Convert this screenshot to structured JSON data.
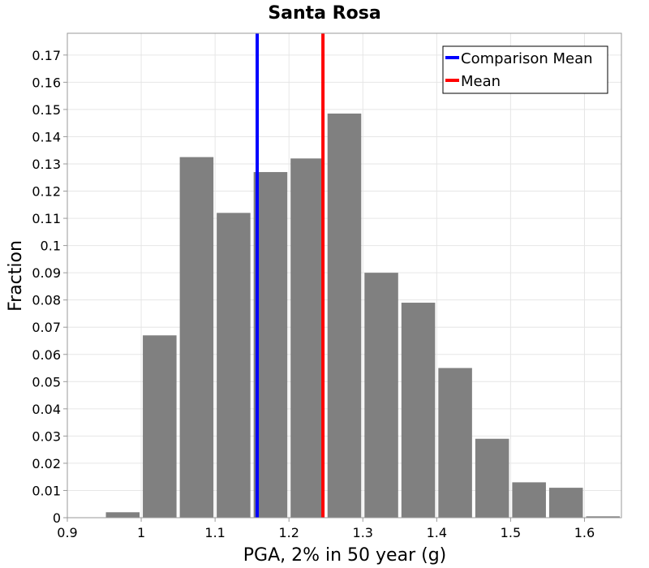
{
  "chart_data": {
    "type": "bar",
    "title": "Santa Rosa",
    "xlabel": "PGA, 2% in 50 year (g)",
    "ylabel": "Fraction",
    "xlim": [
      0.9,
      1.65
    ],
    "ylim": [
      0,
      0.178
    ],
    "grid": true,
    "legend_position": "top-right",
    "bin_width": 0.05,
    "bin_centers": [
      0.925,
      0.975,
      1.025,
      1.075,
      1.125,
      1.175,
      1.225,
      1.275,
      1.325,
      1.375,
      1.425,
      1.475,
      1.525,
      1.575,
      1.625
    ],
    "values": [
      0.0,
      0.002,
      0.067,
      0.1325,
      0.112,
      0.127,
      0.132,
      0.1485,
      0.09,
      0.079,
      0.055,
      0.029,
      0.013,
      0.011,
      0.0005
    ],
    "bar_color": "#808080",
    "x_ticks": [
      0.9,
      1.0,
      1.1,
      1.2,
      1.3,
      1.4,
      1.5,
      1.6
    ],
    "x_tick_labels": [
      "0.9",
      "1",
      "1.1",
      "1.2",
      "1.3",
      "1.4",
      "1.5",
      "1.6"
    ],
    "y_ticks": [
      0,
      0.01,
      0.02,
      0.03,
      0.04,
      0.05,
      0.06,
      0.07,
      0.08,
      0.09,
      0.1,
      0.11,
      0.12,
      0.13,
      0.14,
      0.15,
      0.16,
      0.17
    ],
    "y_tick_labels": [
      "0",
      "0.01",
      "0.02",
      "0.03",
      "0.04",
      "0.05",
      "0.06",
      "0.07",
      "0.08",
      "0.09",
      "0.1",
      "0.11",
      "0.12",
      "0.13",
      "0.14",
      "0.15",
      "0.16",
      "0.17"
    ],
    "vlines": [
      {
        "name": "Comparison Mean",
        "x": 1.157,
        "color": "#0000ff"
      },
      {
        "name": "Mean",
        "x": 1.246,
        "color": "#ff0000"
      }
    ]
  }
}
